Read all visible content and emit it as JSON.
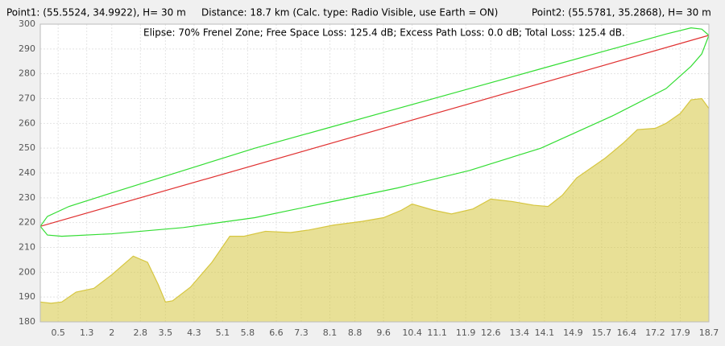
{
  "chart_data": {
    "type": "profile",
    "header": {
      "point1": "Point1: (55.5524, 34.9922), H= 30 m",
      "distance": "Distance: 18.7 km (Calc. type: Radio Visible, use Earth = ON)",
      "point2": "Point2: (55.5781, 35.2868), H= 30 m",
      "info": "Elipse: 70% Frenel Zone;  Free Space Loss: 125.4 dB;  Excess Path Loss: 0.0 dB;   Total Loss: 125.4 dB."
    },
    "xlim": [
      0,
      18.7
    ],
    "ylim": [
      180,
      300
    ],
    "xticks": [
      0.5,
      1.3,
      2,
      2.8,
      3.5,
      4.3,
      5.1,
      5.8,
      6.6,
      7.3,
      8.1,
      8.8,
      9.6,
      10.4,
      11.1,
      11.9,
      12.6,
      13.4,
      14.1,
      14.9,
      15.7,
      16.4,
      17.2,
      17.9,
      18.7
    ],
    "yticks": [
      180,
      190,
      200,
      210,
      220,
      230,
      240,
      250,
      260,
      270,
      280,
      290,
      300
    ],
    "grid": true,
    "series": [
      {
        "name": "terrain",
        "kind": "area",
        "color": "#d6c640",
        "x": [
          0,
          0.3,
          0.6,
          1.0,
          1.5,
          2.0,
          2.6,
          3.0,
          3.3,
          3.5,
          3.7,
          4.2,
          4.8,
          5.3,
          5.7,
          6.3,
          7.0,
          7.5,
          8.2,
          9.0,
          9.6,
          10.1,
          10.4,
          11.0,
          11.5,
          12.1,
          12.6,
          13.2,
          13.8,
          14.2,
          14.6,
          15.0,
          15.8,
          16.3,
          16.7,
          17.2,
          17.5,
          17.9,
          18.2,
          18.5,
          18.7
        ],
        "values": [
          188,
          187.5,
          188,
          192,
          193.5,
          199,
          206.5,
          204,
          195,
          188,
          188.5,
          194,
          204,
          214.5,
          214.5,
          216.5,
          216,
          217,
          219,
          220.5,
          222,
          225,
          227.5,
          225,
          223.5,
          225.5,
          229.5,
          228.5,
          227,
          226.5,
          231,
          238,
          246,
          252,
          257.5,
          258,
          260,
          264,
          269.5,
          270,
          266
        ]
      },
      {
        "name": "line of sight",
        "kind": "line",
        "color": "#e03030",
        "x": [
          0,
          18.7
        ],
        "values": [
          218.5,
          295.5
        ]
      },
      {
        "name": "fresnel upper",
        "kind": "line",
        "color": "#33dd33",
        "x": [
          0,
          0.2,
          0.8,
          2,
          4,
          6,
          8,
          10,
          12,
          14,
          16,
          17.5,
          18.2,
          18.5,
          18.7
        ],
        "values": [
          218.5,
          222.5,
          226.5,
          232,
          241,
          250,
          258,
          266,
          274,
          282,
          290,
          296,
          298.5,
          298,
          295.5
        ]
      },
      {
        "name": "fresnel lower",
        "kind": "line",
        "color": "#33dd33",
        "x": [
          0,
          0.2,
          0.6,
          2,
          4,
          6,
          8,
          10,
          12,
          14,
          16,
          17.5,
          18.2,
          18.5,
          18.7
        ],
        "values": [
          218.5,
          215,
          214.5,
          215.5,
          218,
          222,
          228,
          234,
          241,
          250,
          263,
          274,
          283,
          288,
          295.5
        ]
      }
    ]
  }
}
